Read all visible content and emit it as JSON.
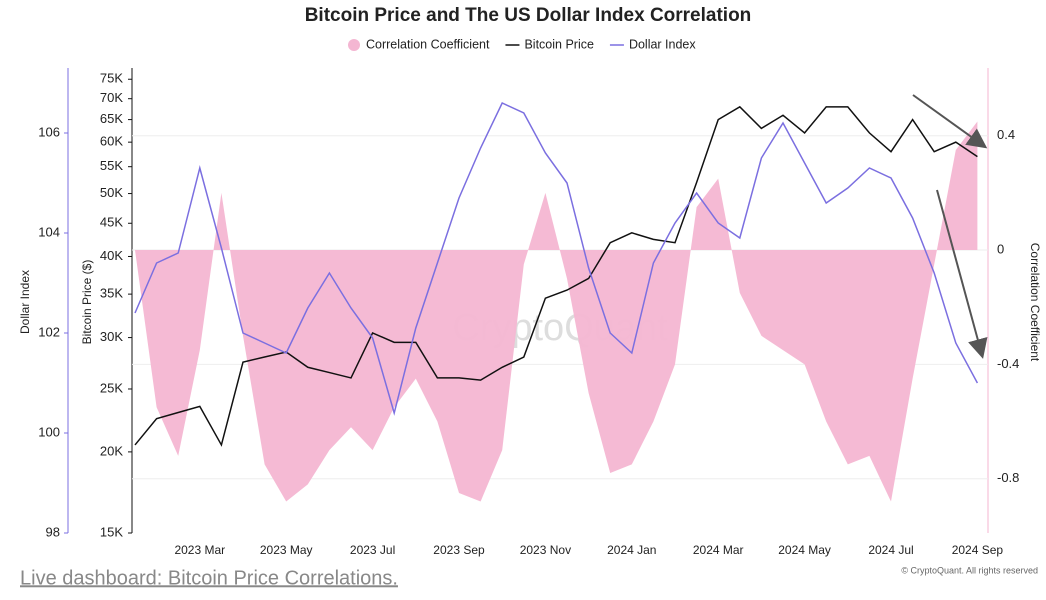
{
  "chart_data": {
    "type": "line",
    "title": "Bitcoin Price and The US Dollar Index Correlation",
    "watermark": "CryptoQuant",
    "credit": "© CryptoQuant. All rights reserved",
    "link_text": "Live dashboard: Bitcoin Price Correlations.",
    "y_label": "Dollar Index",
    "y3_label": "Bitcoin Price ($)",
    "y2_label": "Correlation Coefficient",
    "categories": [
      null,
      null,
      null,
      "2023 Mar",
      null,
      null,
      null,
      "2023 May",
      null,
      null,
      null,
      "2023 Jul",
      null,
      null,
      null,
      "2023 Sep",
      null,
      null,
      null,
      "2023 Nov",
      null,
      null,
      null,
      "2024 Jan",
      null,
      null,
      null,
      "2024 Mar",
      null,
      null,
      null,
      "2024 May",
      null,
      null,
      null,
      "2024 Jul",
      null,
      null,
      null,
      "2024 Sep"
    ],
    "ylim": [
      98,
      107.26
    ],
    "yticks": [
      98,
      100,
      102,
      104,
      106
    ],
    "y2lim": [
      -0.99,
      0.63
    ],
    "y2ticks": [
      -0.8,
      -0.4,
      0,
      0.4
    ],
    "y3lim": [
      15000,
      77500
    ],
    "y3_log": true,
    "y3ticks": [
      {
        "value": 15000,
        "label": "15K"
      },
      {
        "value": 20000,
        "label": "20K"
      },
      {
        "value": 25000,
        "label": "25K"
      },
      {
        "value": 30000,
        "label": "30K"
      },
      {
        "value": 35000,
        "label": "35K"
      },
      {
        "value": 40000,
        "label": "40K"
      },
      {
        "value": 45000,
        "label": "45K"
      },
      {
        "value": 50000,
        "label": "50K"
      },
      {
        "value": 55000,
        "label": "55K"
      },
      {
        "value": 60000,
        "label": "60K"
      },
      {
        "value": 65000,
        "label": "65K"
      },
      {
        "value": 70000,
        "label": "70K"
      },
      {
        "value": 75000,
        "label": "75K"
      }
    ],
    "grid": true,
    "series": [
      {
        "name": "Correlation Coefficient",
        "kind": "area",
        "axis": "y2",
        "color": "#f4b6d2",
        "values": [
          0.0,
          -0.55,
          -0.72,
          -0.35,
          0.2,
          -0.3,
          -0.75,
          -0.88,
          -0.82,
          -0.7,
          -0.62,
          -0.7,
          -0.55,
          -0.45,
          -0.6,
          -0.85,
          -0.88,
          -0.7,
          -0.05,
          0.2,
          -0.1,
          -0.5,
          -0.78,
          -0.75,
          -0.6,
          -0.4,
          0.15,
          0.25,
          -0.15,
          -0.3,
          -0.35,
          -0.4,
          -0.6,
          -0.75,
          -0.72,
          -0.88,
          -0.45,
          -0.05,
          0.35,
          0.45
        ]
      },
      {
        "name": "Bitcoin Price",
        "kind": "line",
        "axis": "y3",
        "color": "#111111",
        "values": [
          20500,
          22500,
          23000,
          23500,
          20500,
          27500,
          28000,
          28500,
          27000,
          26500,
          26000,
          30500,
          29500,
          29500,
          26000,
          26000,
          25800,
          27000,
          28000,
          34500,
          35500,
          37000,
          42000,
          43500,
          42500,
          42000,
          52000,
          65000,
          68000,
          63000,
          66000,
          62000,
          68000,
          68000,
          62000,
          58000,
          65000,
          58000,
          60000,
          57000
        ]
      },
      {
        "name": "Dollar Index",
        "kind": "line",
        "axis": "y",
        "color": "#7b6fe0",
        "values": [
          102.4,
          103.4,
          103.6,
          105.3,
          103.7,
          102.0,
          101.8,
          101.6,
          102.5,
          103.2,
          102.5,
          101.9,
          100.4,
          102.1,
          103.4,
          104.7,
          105.7,
          106.6,
          106.4,
          105.6,
          105.0,
          103.3,
          102.0,
          101.6,
          103.4,
          104.2,
          104.8,
          104.2,
          103.9,
          105.5,
          106.2,
          105.4,
          104.6,
          104.9,
          105.3,
          105.1,
          104.3,
          103.2,
          101.8,
          101.0
        ]
      }
    ]
  }
}
